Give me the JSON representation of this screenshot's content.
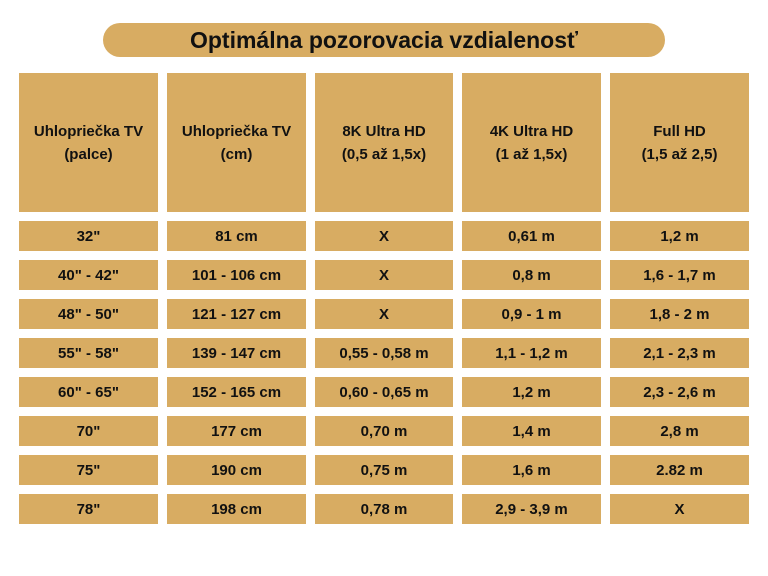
{
  "title": "Optimálna pozorovacia vzdialenosť",
  "headers": [
    [
      "Uhlopriečka TV",
      "(palce)"
    ],
    [
      "Uhlopriečka TV",
      "(cm)"
    ],
    [
      "8K Ultra HD",
      "(0,5 až 1,5x)"
    ],
    [
      "4K Ultra HD",
      "(1 až 1,5x)"
    ],
    [
      "Full HD",
      "(1,5 až 2,5)"
    ]
  ],
  "rows": [
    [
      "32\"",
      "81 cm",
      "X",
      "0,61 m",
      "1,2 m"
    ],
    [
      "40\" - 42\"",
      "101 - 106 cm",
      "X",
      "0,8 m",
      "1,6 - 1,7 m"
    ],
    [
      "48\" - 50\"",
      "121 - 127 cm",
      "X",
      "0,9 - 1 m",
      "1,8 - 2 m"
    ],
    [
      "55\" - 58\"",
      "139 - 147 cm",
      "0,55 - 0,58 m",
      "1,1 - 1,2 m",
      "2,1 - 2,3 m"
    ],
    [
      "60\" - 65\"",
      "152 - 165 cm",
      "0,60 - 0,65 m",
      "1,2 m",
      "2,3 - 2,6 m"
    ],
    [
      "70\"",
      "177 cm",
      "0,70 m",
      "1,4 m",
      "2,8 m"
    ],
    [
      "75\"",
      "190 cm",
      "0,75 m",
      "1,6 m",
      "2.82 m"
    ],
    [
      "78\"",
      "198 cm",
      "0,78 m",
      "2,9 - 3,9 m",
      "X"
    ]
  ],
  "colors": {
    "cell_bg": "#d8ac62",
    "text": "#111111",
    "page_bg": "#ffffff"
  }
}
